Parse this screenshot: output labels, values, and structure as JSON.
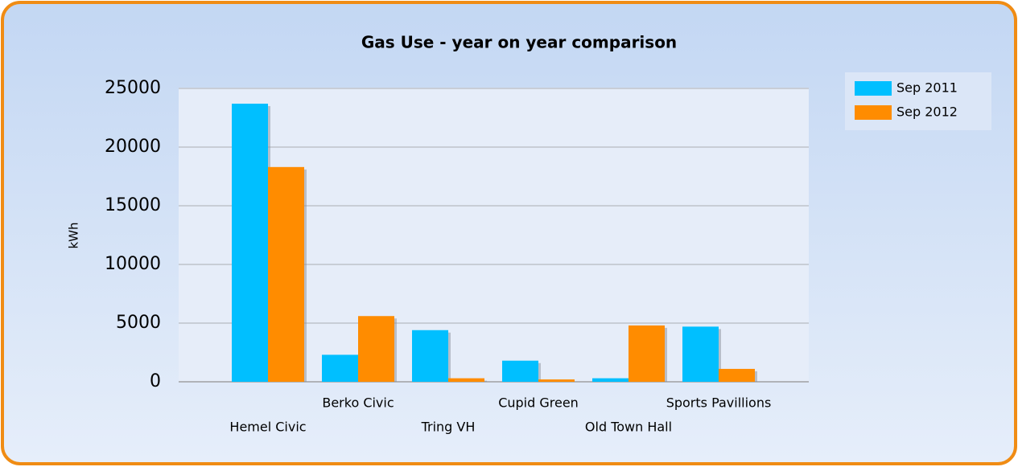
{
  "chart_data": {
    "type": "bar",
    "title": "Gas Use - year on year comparison",
    "y_label": "kWh",
    "categories": [
      "Hemel Civic",
      "Berko Civic",
      "Tring VH",
      "Cupid Green",
      "Old Town Hall",
      "Sports Pavillions"
    ],
    "series": [
      {
        "name": "Sep 2011",
        "color": "#00bfff",
        "values": [
          23700,
          2300,
          4400,
          1800,
          300,
          4700
        ]
      },
      {
        "name": "Sep 2012",
        "color": "#ff8c00",
        "values": [
          18300,
          5600,
          300,
          200,
          4800,
          1100
        ]
      }
    ],
    "ylim": [
      0,
      25000
    ],
    "yticks": [
      0,
      5000,
      10000,
      15000,
      20000,
      25000
    ],
    "grid": true,
    "legend": "top-right"
  }
}
